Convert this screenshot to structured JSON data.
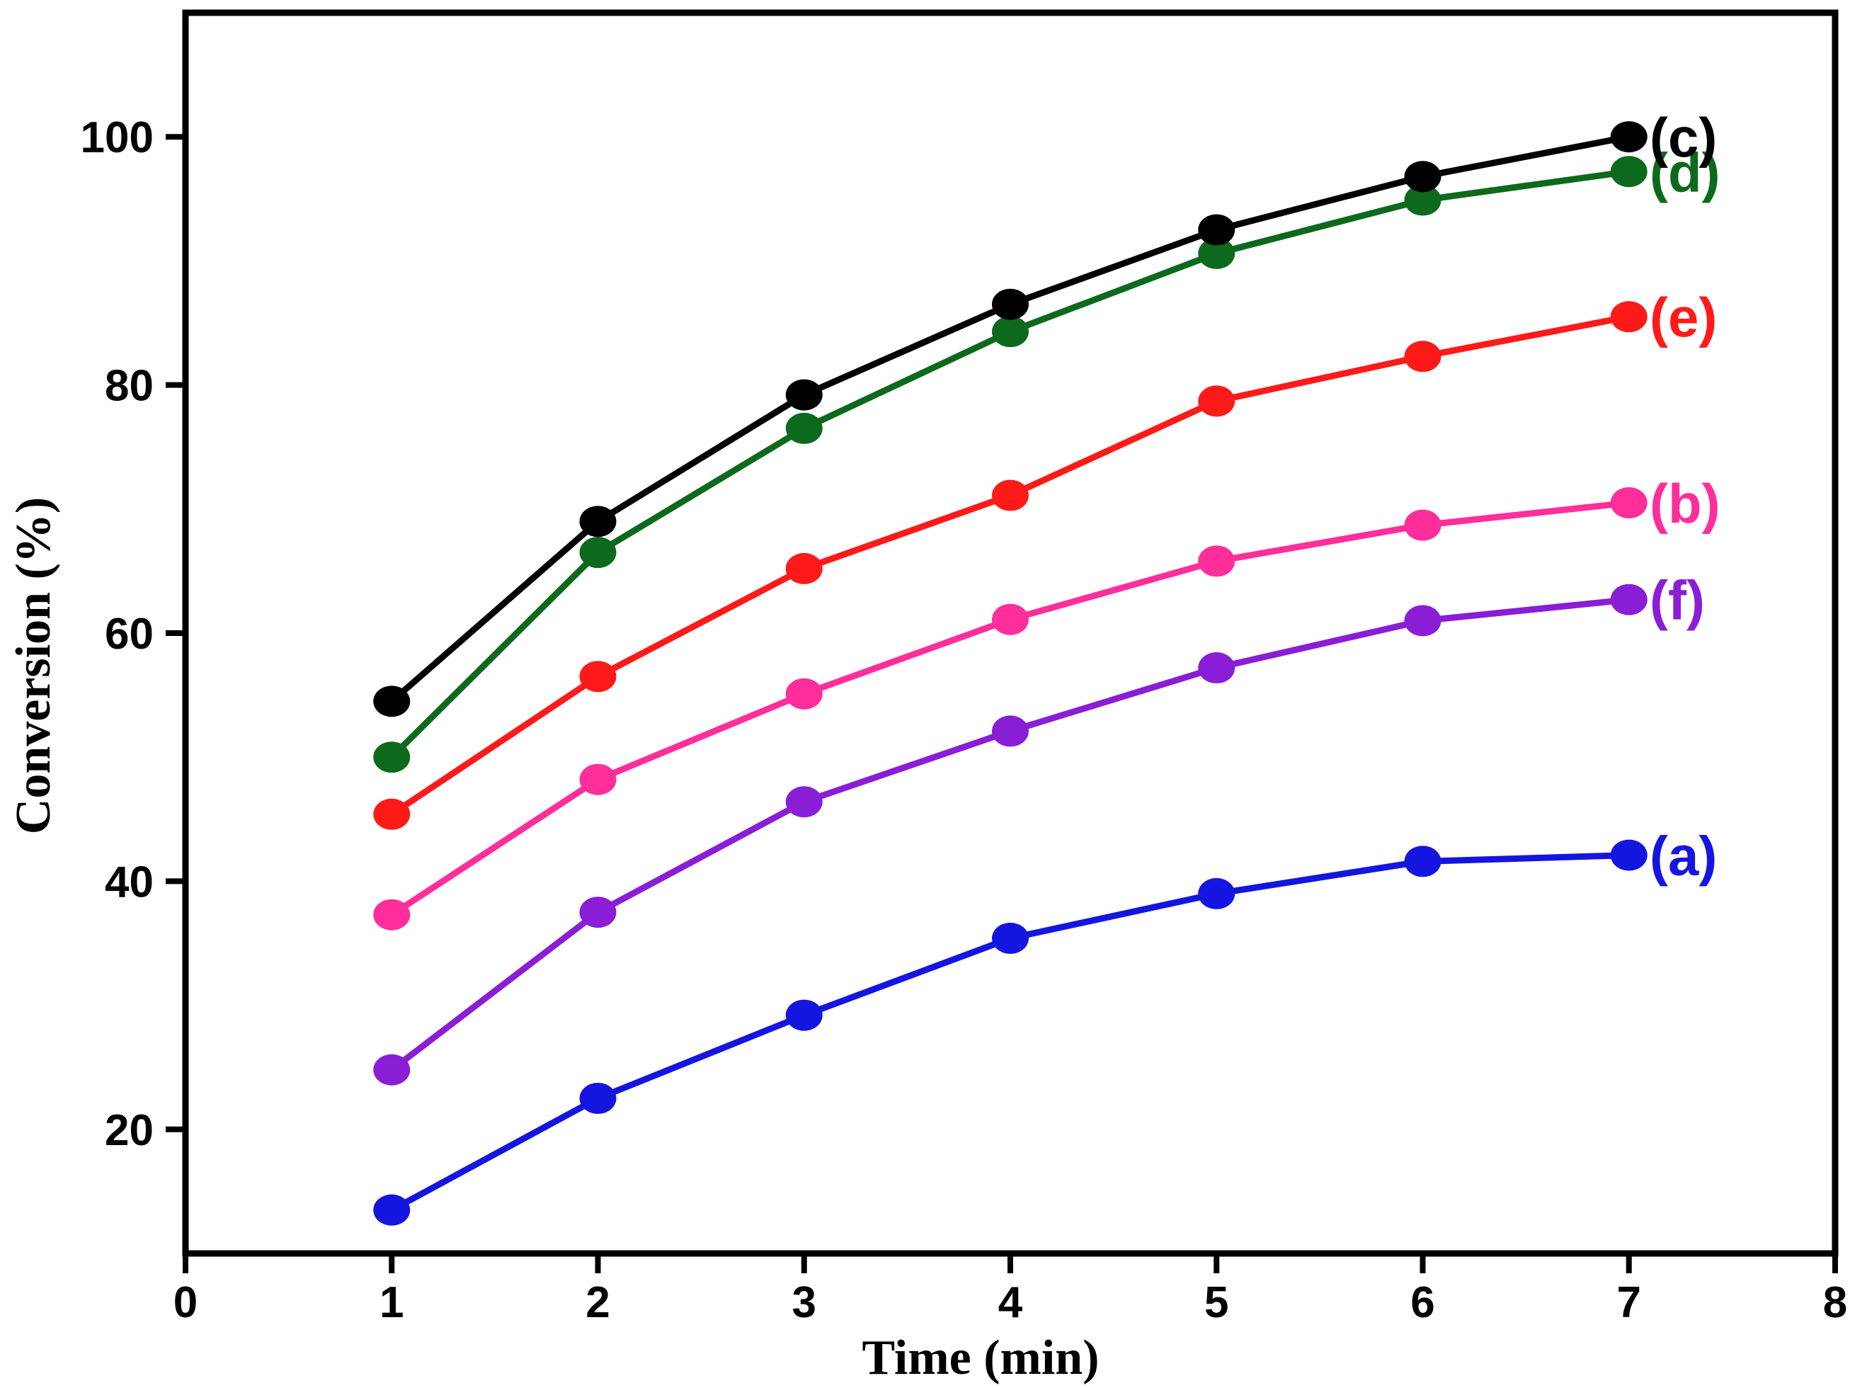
{
  "chart_data": {
    "type": "line",
    "title": "",
    "xlabel": "Time (min)",
    "ylabel": "Conversion (%)",
    "xlim": [
      0,
      8
    ],
    "ylim": [
      10,
      110
    ],
    "xticks": [
      0,
      1,
      2,
      3,
      4,
      5,
      6,
      7,
      8
    ],
    "yticks": [
      20,
      40,
      60,
      80,
      100
    ],
    "grid": false,
    "legend": "inline labels at right end of each series",
    "x": [
      1,
      2,
      3,
      4,
      5,
      6,
      7
    ],
    "series": [
      {
        "name": "(c)",
        "color": "#000000",
        "values": [
          54.5,
          69.0,
          79.2,
          86.5,
          92.5,
          96.8,
          100.0
        ]
      },
      {
        "name": "(d)",
        "color": "#0d6a1c",
        "values": [
          50.0,
          66.5,
          76.5,
          84.3,
          90.6,
          94.9,
          97.2
        ]
      },
      {
        "name": "(e)",
        "color": "#ff1a1a",
        "values": [
          45.4,
          56.5,
          65.2,
          71.1,
          78.7,
          82.3,
          85.5
        ]
      },
      {
        "name": "(b)",
        "color": "#ff2e9a",
        "values": [
          37.3,
          48.2,
          55.1,
          61.1,
          65.8,
          68.7,
          70.5
        ]
      },
      {
        "name": "(f)",
        "color": "#8a1ed6",
        "values": [
          24.8,
          37.5,
          46.4,
          52.1,
          57.2,
          61.0,
          62.7
        ]
      },
      {
        "name": "(a)",
        "color": "#1515e0",
        "values": [
          13.5,
          22.5,
          29.2,
          35.4,
          39.0,
          41.6,
          42.1
        ]
      }
    ]
  }
}
